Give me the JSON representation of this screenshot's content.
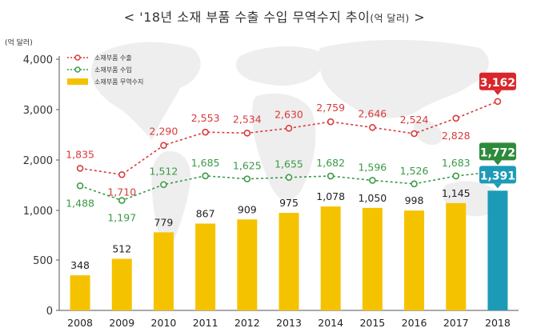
{
  "chart_data": {
    "type": "bar",
    "title": "< '18년 소재 부품 수출 수입 무역수지 추이",
    "title_unit": "(억 달러)",
    "title_end": ">",
    "ylabel": "(억 달러)",
    "y_axis": {
      "ticks": [
        0,
        500,
        1000,
        2000,
        3000,
        4000
      ],
      "tick_labels": [
        "0",
        "500",
        "1,000",
        "2,000",
        "3,000",
        "4,000"
      ],
      "scale": "piecewise"
    },
    "categories": [
      "2008",
      "2009",
      "2010",
      "2011",
      "2012",
      "2013",
      "2014",
      "2015",
      "2016",
      "2017",
      "2018"
    ],
    "series": [
      {
        "name": "소재부품 수출",
        "type": "line",
        "color": "#d93a3a",
        "values": [
          1835,
          1710,
          2290,
          2553,
          2534,
          2630,
          2759,
          2646,
          2524,
          2828,
          3162
        ],
        "labels": [
          "1,835",
          "1,710",
          "2,290",
          "2,553",
          "2,534",
          "2,630",
          "2,759",
          "2,646",
          "2,524",
          "2,828",
          "3,162"
        ]
      },
      {
        "name": "소재부품 수입",
        "type": "line",
        "color": "#3a9a46",
        "values": [
          1488,
          1197,
          1512,
          1685,
          1625,
          1655,
          1682,
          1596,
          1526,
          1683,
          1772
        ],
        "labels": [
          "1,488",
          "1,197",
          "1,512",
          "1,685",
          "1,625",
          "1,655",
          "1,682",
          "1,596",
          "1,526",
          "1,683",
          "1,772"
        ]
      },
      {
        "name": "소재부품 무역수지",
        "type": "bar",
        "color": "#f5c200",
        "highlight_color": "#1d9bb6",
        "values": [
          348,
          512,
          779,
          867,
          909,
          975,
          1078,
          1050,
          998,
          1145,
          1391
        ],
        "labels": [
          "348",
          "512",
          "779",
          "867",
          "909",
          "975",
          "1,078",
          "1,050",
          "998",
          "1,145",
          "1,391"
        ]
      }
    ],
    "legend": {
      "position": "top-left"
    },
    "grid": false
  }
}
